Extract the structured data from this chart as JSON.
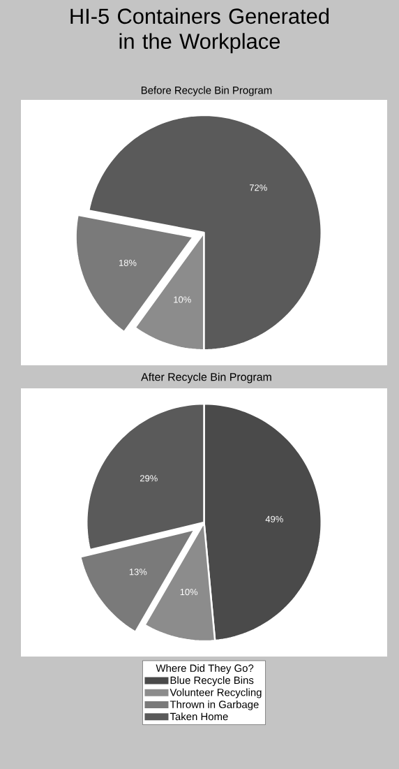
{
  "chart_data": [
    {
      "type": "pie",
      "title": "HI-5 Containers Generated in the Workplace",
      "subtitle": "Before Recycle Bin Program",
      "categories": [
        null,
        null,
        null
      ],
      "values": [
        10,
        18,
        72
      ],
      "value_labels": [
        "10%",
        "18%",
        "72%"
      ],
      "colors": [
        "#8c8c8c",
        "#7a7a7a",
        "#5a5a5a"
      ]
    },
    {
      "type": "pie",
      "title": "After Recycle Bin Program",
      "legend_title": "Where Did They Go?",
      "legend": "bottom",
      "categories": [
        "Blue Recycle Bins",
        "Volunteer Recycling",
        "Thrown in Garbage",
        "Taken Home"
      ],
      "values": [
        49,
        10,
        13,
        29
      ],
      "value_labels": [
        "49%",
        "10%",
        "13%",
        "29%"
      ],
      "colors": [
        "#4a4a4a",
        "#8c8c8c",
        "#7a7a7a",
        "#5a5a5a"
      ]
    }
  ]
}
